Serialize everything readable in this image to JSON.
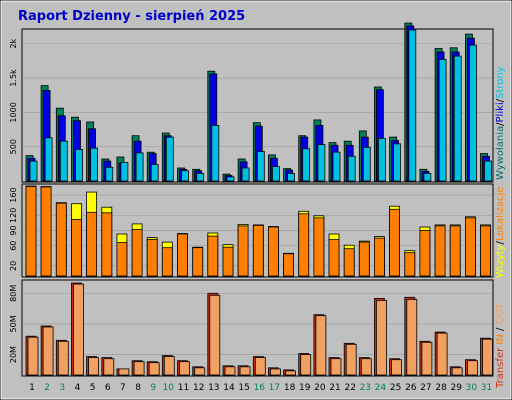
{
  "title": "Raport Dzienny -  sierpień 2025",
  "colors": {
    "background": "#c0c0c0",
    "frame": "#000000",
    "title": "#0000cc",
    "visits": "#00805c",
    "hits_front": "#0000e0",
    "hits_back": "#00c0e0",
    "visitors": "#00d0ff",
    "pages_back": "#0000d0",
    "files_back": "#007070",
    "weekend_label": "#00805c",
    "day_label": "#000000",
    "kb": "#ff8000",
    "kb_highlight": "#ffff00",
    "transfer_in": "#e06020",
    "transfer_out": "#f0a060",
    "transfer_front": "#e08040",
    "transfer_back": "#d03010"
  },
  "chart_data": [
    {
      "type": "bar",
      "name": "hits",
      "x": [
        "1",
        "2",
        "3",
        "4",
        "5",
        "6",
        "7",
        "8",
        "9",
        "10",
        "11",
        "12",
        "13",
        "14",
        "15",
        "16",
        "17",
        "18",
        "19",
        "20",
        "21",
        "22",
        "23",
        "24",
        "25",
        "26",
        "27",
        "28",
        "29",
        "30",
        "31"
      ],
      "weekend": [
        false,
        true,
        true,
        false,
        false,
        false,
        false,
        false,
        true,
        true,
        false,
        false,
        false,
        false,
        false,
        true,
        true,
        false,
        false,
        false,
        false,
        false,
        true,
        true,
        false,
        false,
        false,
        false,
        false,
        true,
        true
      ],
      "yticks": [
        "500",
        "1000",
        "1.5k",
        "2k"
      ],
      "ymax": 2200,
      "series": [
        {
          "role": "back_a",
          "values": [
            370,
            1390,
            1060,
            930,
            860,
            320,
            350,
            660,
            420,
            700,
            190,
            170,
            1600,
            100,
            320,
            850,
            380,
            180,
            660,
            890,
            560,
            580,
            730,
            1370,
            640,
            2300,
            170,
            1930,
            1940,
            2140,
            400
          ]
        },
        {
          "role": "back_b",
          "values": [
            330,
            1320,
            950,
            880,
            760,
            290,
            260,
            580,
            400,
            660,
            170,
            150,
            1560,
            80,
            280,
            800,
            330,
            160,
            640,
            810,
            520,
            520,
            640,
            1330,
            590,
            2260,
            140,
            1880,
            1880,
            2080,
            360
          ]
        },
        {
          "role": "front",
          "values": [
            290,
            630,
            580,
            460,
            480,
            200,
            270,
            410,
            240,
            640,
            150,
            110,
            810,
            60,
            190,
            430,
            210,
            110,
            470,
            530,
            420,
            360,
            490,
            620,
            540,
            2200,
            110,
            1770,
            1820,
            1980,
            290
          ]
        }
      ]
    },
    {
      "type": "bar",
      "name": "kb",
      "x": [
        "1",
        "2",
        "3",
        "4",
        "5",
        "6",
        "7",
        "8",
        "9",
        "10",
        "11",
        "12",
        "13",
        "14",
        "15",
        "16",
        "17",
        "18",
        "19",
        "20",
        "21",
        "22",
        "23",
        "24",
        "25",
        "26",
        "27",
        "28",
        "29",
        "30",
        "31"
      ],
      "yticks": [
        "20",
        "60",
        "90",
        "120",
        "160"
      ],
      "ymax": 180,
      "series": [
        {
          "role": "back",
          "values": [
            178,
            177,
            145,
            143,
            166,
            136,
            83,
            103,
            76,
            67,
            84,
            57,
            85,
            62,
            102,
            101,
            98,
            45,
            128,
            119,
            83,
            61,
            69,
            78,
            138,
            50,
            97,
            101,
            101,
            117,
            101
          ]
        },
        {
          "role": "front",
          "values": [
            177,
            176,
            144,
            112,
            126,
            125,
            66,
            92,
            72,
            56,
            83,
            56,
            79,
            57,
            99,
            100,
            97,
            44,
            123,
            115,
            72,
            54,
            67,
            75,
            132,
            46,
            90,
            99,
            99,
            115,
            99
          ]
        }
      ]
    },
    {
      "type": "bar",
      "name": "transfer",
      "x": [
        "1",
        "2",
        "3",
        "4",
        "5",
        "6",
        "7",
        "8",
        "9",
        "10",
        "11",
        "12",
        "13",
        "14",
        "15",
        "16",
        "17",
        "18",
        "19",
        "20",
        "21",
        "22",
        "23",
        "24",
        "25",
        "26",
        "27",
        "28",
        "29",
        "30",
        "31"
      ],
      "yticks": [
        "20M",
        "50M",
        "80M"
      ],
      "ymax": 92,
      "series": [
        {
          "role": "in",
          "values": [
            38,
            48,
            34,
            90,
            18,
            17,
            6,
            14,
            13,
            19,
            14,
            8,
            80,
            9,
            9,
            18,
            7,
            5,
            21,
            59,
            17,
            31,
            17,
            75,
            16,
            76,
            33,
            42,
            8,
            15,
            36
          ]
        },
        {
          "role": "out",
          "values": [
            37,
            47,
            33,
            89,
            17,
            16,
            6,
            13,
            12,
            18,
            13,
            7,
            78,
            8,
            8,
            17,
            6,
            4,
            20,
            58,
            16,
            30,
            16,
            73,
            15,
            74,
            32,
            41,
            7,
            14,
            35
          ]
        }
      ]
    }
  ],
  "side_labels": {
    "top": [
      {
        "text": "Wywołania",
        "color": "#007070"
      },
      {
        "text": "/",
        "color": "#000000"
      },
      {
        "text": "Pliki",
        "color": "#0000cc"
      },
      {
        "text": "/",
        "color": "#000000"
      },
      {
        "text": "Strony",
        "color": "#00c0e0"
      }
    ],
    "middle": [
      {
        "text": "Wizyty",
        "color": "#ffff00"
      },
      {
        "text": "/",
        "color": "#000000"
      },
      {
        "text": "Lokalizacje",
        "color": "#ff8000"
      }
    ],
    "bottom": [
      {
        "text": "Transfer",
        "color": "#d03010"
      },
      {
        "text": " IN ",
        "color": "#ff8000"
      },
      {
        "text": "/ ",
        "color": "#000000"
      },
      {
        "text": "OUT",
        "color": "#f0a060"
      }
    ]
  }
}
